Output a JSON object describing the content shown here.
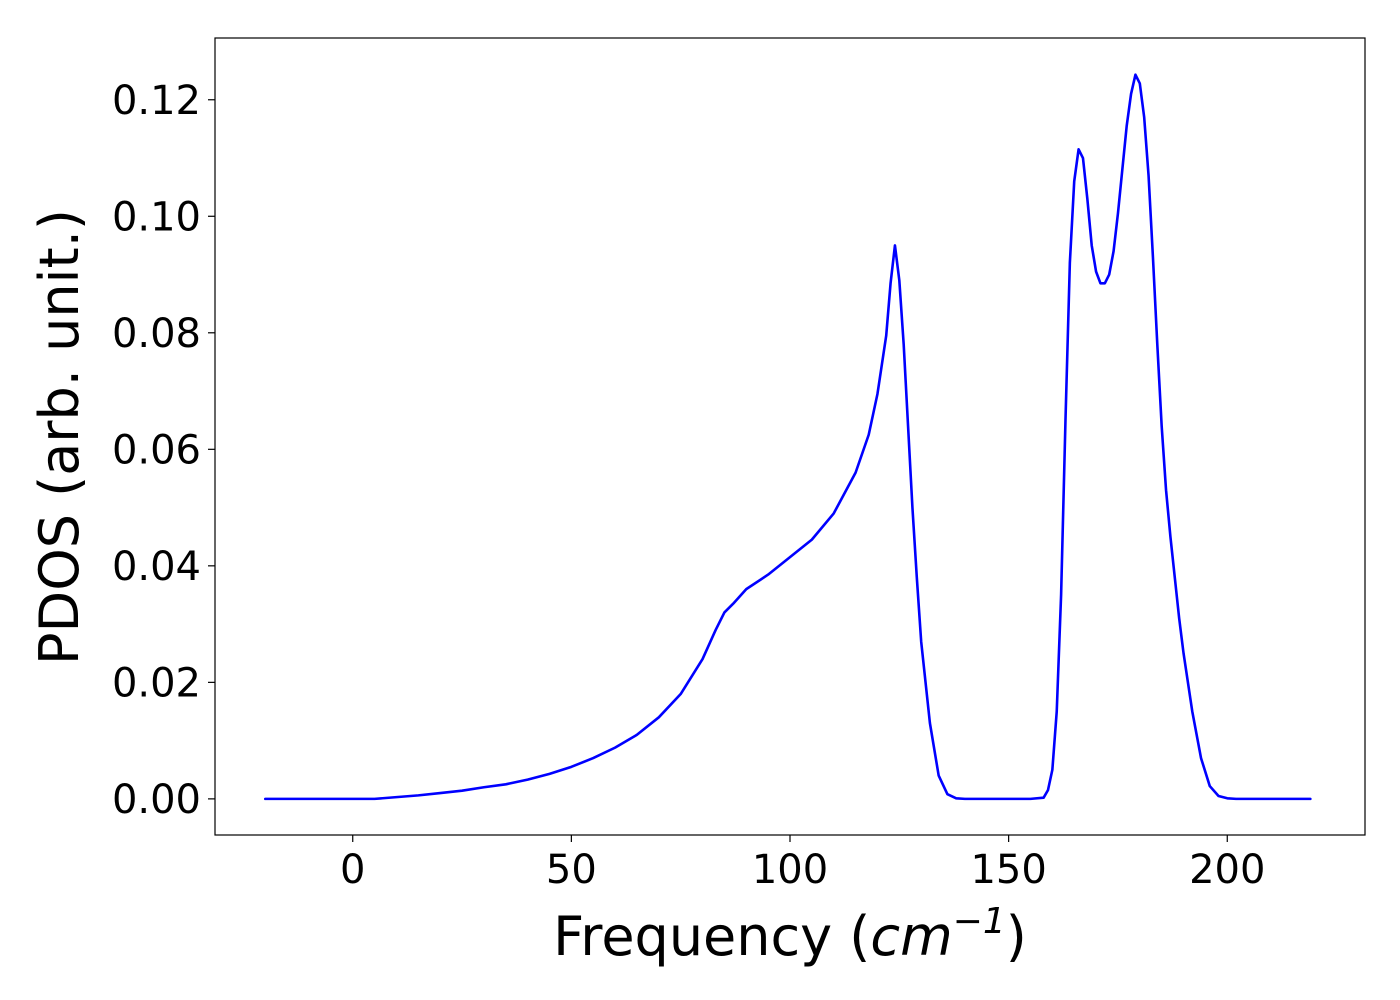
{
  "chart_data": {
    "type": "line",
    "title": "",
    "xlabel": "Frequency (",
    "xlabel_math": "cm",
    "xlabel_sup": "−1",
    "xlabel_close": ")",
    "ylabel": "PDOS (arb. unit.)",
    "xlim": [
      -31.5,
      231.5
    ],
    "ylim": [
      -0.0062,
      0.1306
    ],
    "xticks": [
      0,
      50,
      100,
      150,
      200
    ],
    "xtick_labels": [
      "0",
      "50",
      "100",
      "150",
      "200"
    ],
    "yticks": [
      0.0,
      0.02,
      0.04,
      0.06,
      0.08,
      0.1,
      0.12
    ],
    "ytick_labels": [
      "0.00",
      "0.02",
      "0.04",
      "0.06",
      "0.08",
      "0.10",
      "0.12"
    ],
    "grid": false,
    "legend": "none",
    "series_color": "#0000ff",
    "series": [
      {
        "x": [
          -20,
          -10,
          0,
          5,
          10,
          15,
          20,
          25,
          30,
          35,
          40,
          45,
          50,
          55,
          60,
          65,
          70,
          75,
          80,
          83,
          85,
          87,
          90,
          95,
          100,
          105,
          110,
          115,
          118,
          120,
          122,
          123,
          124,
          125,
          126,
          127,
          128,
          129,
          130,
          132,
          134,
          136,
          138,
          140,
          145,
          150,
          155,
          158,
          159,
          160,
          161,
          162,
          163,
          164,
          165,
          166,
          167,
          168,
          169,
          170,
          171,
          172,
          173,
          174,
          175,
          176,
          177,
          178,
          179,
          180,
          181,
          182,
          183,
          184,
          185,
          186,
          187,
          188,
          189,
          190,
          192,
          194,
          196,
          198,
          200,
          202,
          204,
          206,
          210,
          215,
          219
        ],
        "y": [
          0.0,
          0.0,
          0.0,
          0.0,
          0.0003,
          0.0006,
          0.001,
          0.0014,
          0.002,
          0.0025,
          0.0033,
          0.0043,
          0.0055,
          0.007,
          0.0088,
          0.011,
          0.014,
          0.018,
          0.024,
          0.029,
          0.032,
          0.0335,
          0.036,
          0.0385,
          0.0415,
          0.0445,
          0.049,
          0.056,
          0.0625,
          0.0695,
          0.0795,
          0.0885,
          0.095,
          0.089,
          0.078,
          0.064,
          0.05,
          0.038,
          0.027,
          0.013,
          0.004,
          0.0008,
          0.0001,
          0.0,
          0.0,
          0.0,
          0.0,
          0.0002,
          0.0015,
          0.005,
          0.015,
          0.035,
          0.065,
          0.092,
          0.106,
          0.1115,
          0.11,
          0.103,
          0.095,
          0.0905,
          0.0885,
          0.0885,
          0.09,
          0.094,
          0.1005,
          0.108,
          0.1155,
          0.121,
          0.1243,
          0.1228,
          0.117,
          0.107,
          0.093,
          0.078,
          0.064,
          0.053,
          0.045,
          0.038,
          0.031,
          0.025,
          0.015,
          0.007,
          0.0022,
          0.0005,
          0.0001,
          0.0,
          0.0,
          0.0,
          0.0,
          0.0,
          0.0
        ]
      }
    ]
  }
}
